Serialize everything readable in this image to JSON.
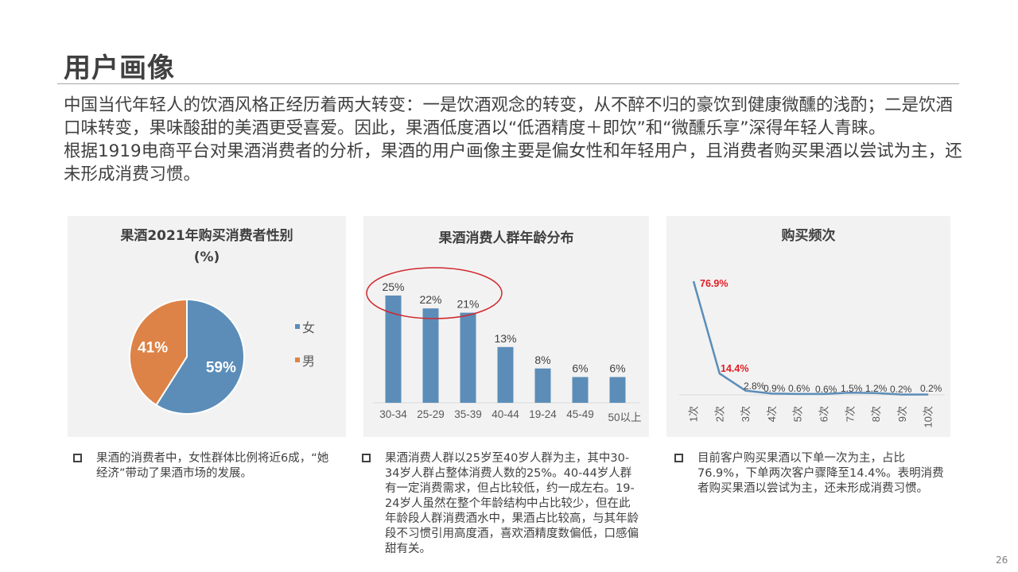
{
  "page": {
    "title": "用户画像",
    "intro_paragraphs": [
      "中国当代年轻人的饮酒风格正经历着两大转变：一是饮酒观念的转变，从不醉不归的豪饮到健康微醺的浅酌；二是饮酒口味转变，果味酸甜的美酒更受喜爱。因此，果酒低度酒以“低酒精度＋即饮”和“微醺乐享”深得年轻人青睐。",
      "根据1919电商平台对果酒消费者的分析，果酒的用户画像主要是偏女性和年轻用户，且消费者购买果酒以尝试为主，还未形成消费习惯。"
    ],
    "page_number": "26"
  },
  "notes": {
    "gender": "果酒的消费者中，女性群体比例将近6成，“她经济”带动了果酒市场的发展。",
    "age": "果酒消费人群以25岁至40岁人群为主，其中30-34岁人群占整体消费人数的25%。40-44岁人群有一定消费需求，但占比较低，约一成左右。19-24岁人虽然在整个年龄结构中占比较少，但在此年龄段人群消费酒水中，果酒占比较高，与其年龄段不习惯引用高度酒，喜欢酒精度数偏低，口感偏甜有关。",
    "freq": "目前客户购买果酒以下单一次为主，占比76.9%，下单两次客户骤降至14.4%。表明消费者购买果酒以尝试为主，还未形成消费习惯。"
  },
  "chart_data": [
    {
      "type": "pie",
      "title": "果酒2021年购买消费者性别",
      "subtitle": "(%)",
      "categories": [
        "女",
        "男"
      ],
      "values": [
        59,
        41
      ],
      "labels": [
        "59%",
        "41%"
      ],
      "colors": [
        "#5b8db8",
        "#dd8347"
      ],
      "legend": "right"
    },
    {
      "type": "bar",
      "title": "果酒消费人群年龄分布",
      "categories": [
        "30-34",
        "25-29",
        "35-39",
        "40-44",
        "19-24",
        "45-49",
        "50以上"
      ],
      "values": [
        25,
        22,
        21,
        13,
        8,
        6,
        6
      ],
      "labels": [
        "25%",
        "22%",
        "21%",
        "13%",
        "8%",
        "6%",
        "6%"
      ],
      "ylim": [
        0,
        25
      ],
      "bar_color": "#5b8db8",
      "highlight": {
        "shape": "ellipse",
        "color": "#d0282e",
        "categories": [
          "30-34",
          "25-29",
          "35-39"
        ]
      }
    },
    {
      "type": "line",
      "title": "购买频次",
      "categories": [
        "1次",
        "2次",
        "3次",
        "4次",
        "5次",
        "6次",
        "7次",
        "8次",
        "9次",
        "10次"
      ],
      "values": [
        76.9,
        14.4,
        2.8,
        0.9,
        0.6,
        0.6,
        1.5,
        1.2,
        0.2,
        0.2
      ],
      "labels": [
        "76.9%",
        "14.4%",
        "2.8%",
        "0.9%",
        "0.6%",
        "0.6%",
        "1.5%",
        "1.2%",
        "0.2%",
        "0.2%"
      ],
      "line_color": "#5b8db8",
      "highlight_label_color": "#e31b23",
      "highlight_indices": [
        0,
        1
      ]
    }
  ]
}
